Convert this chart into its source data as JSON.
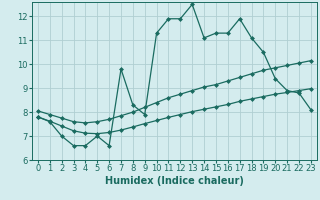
{
  "xlabel": "Humidex (Indice chaleur)",
  "background_color": "#d4ecee",
  "grid_color": "#b0cfd2",
  "line_color": "#1a6b60",
  "xlim": [
    -0.5,
    23.5
  ],
  "ylim": [
    6,
    12.6
  ],
  "xticks": [
    0,
    1,
    2,
    3,
    4,
    5,
    6,
    7,
    8,
    9,
    10,
    11,
    12,
    13,
    14,
    15,
    16,
    17,
    18,
    19,
    20,
    21,
    22,
    23
  ],
  "yticks": [
    6,
    7,
    8,
    9,
    10,
    11,
    12
  ],
  "line1_x": [
    0,
    1,
    2,
    3,
    4,
    5,
    6,
    7,
    8,
    9,
    10,
    11,
    12,
    13,
    14,
    15,
    16,
    17,
    18,
    19,
    20,
    21,
    22,
    23
  ],
  "line1_y": [
    7.8,
    7.6,
    7.0,
    6.6,
    6.6,
    7.0,
    6.6,
    9.8,
    8.3,
    7.9,
    11.3,
    11.9,
    11.9,
    12.5,
    11.1,
    11.3,
    11.3,
    11.9,
    11.1,
    10.5,
    9.4,
    8.9,
    8.8,
    8.1
  ],
  "line2_x": [
    0,
    1,
    2,
    3,
    4,
    5,
    6,
    7,
    8,
    9,
    10,
    11,
    12,
    13,
    14,
    15,
    16,
    17,
    18,
    19,
    20,
    21,
    22,
    23
  ],
  "line2_y": [
    8.05,
    7.9,
    7.75,
    7.6,
    7.55,
    7.6,
    7.7,
    7.85,
    8.0,
    8.2,
    8.4,
    8.6,
    8.75,
    8.9,
    9.05,
    9.15,
    9.3,
    9.45,
    9.6,
    9.75,
    9.85,
    9.95,
    10.05,
    10.15
  ],
  "line3_x": [
    0,
    1,
    2,
    3,
    4,
    5,
    6,
    7,
    8,
    9,
    10,
    11,
    12,
    13,
    14,
    15,
    16,
    17,
    18,
    19,
    20,
    21,
    22,
    23
  ],
  "line3_y": [
    7.8,
    7.62,
    7.42,
    7.22,
    7.12,
    7.1,
    7.15,
    7.25,
    7.38,
    7.52,
    7.65,
    7.78,
    7.9,
    8.02,
    8.12,
    8.22,
    8.32,
    8.45,
    8.55,
    8.65,
    8.75,
    8.82,
    8.9,
    8.98
  ],
  "markersize": 2.5,
  "linewidth": 0.9,
  "label_fontsize": 7,
  "tick_fontsize": 6
}
